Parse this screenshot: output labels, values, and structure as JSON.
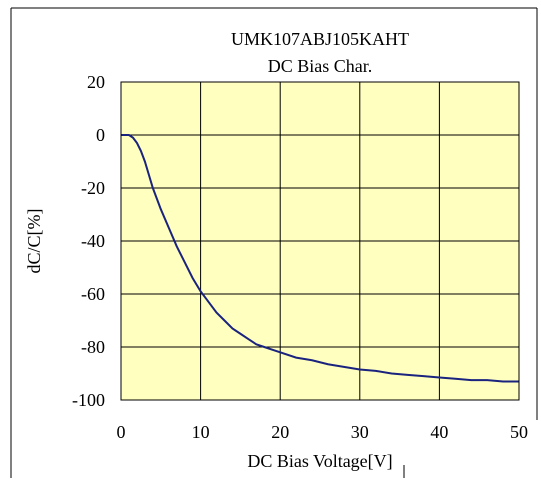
{
  "chart_data": {
    "type": "line",
    "title": "UMK107ABJ105KAHT",
    "subtitle": "DC Bias Char.",
    "xlabel": "DC Bias Voltage[V]",
    "ylabel": "dC/C[%]",
    "xlim": [
      0,
      50
    ],
    "ylim": [
      -100,
      20
    ],
    "x_ticks": [
      0,
      10,
      20,
      30,
      40,
      50
    ],
    "y_ticks": [
      20,
      0,
      -20,
      -40,
      -60,
      -80,
      -100
    ],
    "grid": true,
    "legend": "none",
    "colors": {
      "plot_bg": "#ffffc0",
      "line": "#1a237e",
      "grid": "#000000",
      "border": "#000000"
    },
    "series": [
      {
        "x": [
          0,
          1,
          1.5,
          2,
          2.5,
          3,
          3.5,
          4,
          4.5,
          5,
          6,
          7,
          8,
          9,
          10,
          11,
          12,
          13,
          14,
          15,
          16,
          17,
          18,
          19,
          20,
          22,
          24,
          26,
          28,
          30,
          32,
          34,
          36,
          38,
          40,
          42,
          44,
          46,
          48,
          50
        ],
        "values": [
          0,
          0,
          -1,
          -3,
          -6,
          -10,
          -15,
          -20,
          -24,
          -28,
          -35,
          -42,
          -48,
          -54,
          -59,
          -63,
          -67,
          -70,
          -73,
          -75,
          -77,
          -79,
          -80,
          -81,
          -82,
          -84,
          -85,
          -86.5,
          -87.5,
          -88.5,
          -89,
          -90,
          -90.5,
          -91,
          -91.5,
          -92,
          -92.5,
          -92.5,
          -93,
          -93
        ]
      }
    ]
  }
}
